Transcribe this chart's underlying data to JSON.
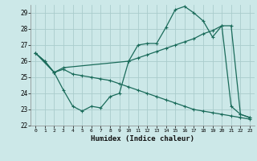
{
  "xlabel": "Humidex (Indice chaleur)",
  "bg_color": "#cce8e8",
  "grid_color": "#aacccc",
  "line_color": "#1a6b5a",
  "x_min": -0.5,
  "x_max": 23.5,
  "y_min": 22,
  "y_max": 29.5,
  "yticks": [
    22,
    23,
    24,
    25,
    26,
    27,
    28,
    29
  ],
  "xticks": [
    0,
    1,
    2,
    3,
    4,
    5,
    6,
    7,
    8,
    9,
    10,
    11,
    12,
    13,
    14,
    15,
    16,
    17,
    18,
    19,
    20,
    21,
    22,
    23
  ],
  "line1_x": [
    0,
    1,
    2,
    3,
    4,
    5,
    6,
    7,
    8,
    9,
    10,
    11,
    12,
    13,
    14,
    15,
    16,
    17,
    18,
    19,
    20,
    21,
    22,
    23
  ],
  "line1_y": [
    26.5,
    26.0,
    25.3,
    24.2,
    23.2,
    22.9,
    23.2,
    23.1,
    23.8,
    24.0,
    26.0,
    27.0,
    27.1,
    27.1,
    28.1,
    29.2,
    29.4,
    29.0,
    28.5,
    27.5,
    28.2,
    23.2,
    22.7,
    22.5
  ],
  "line2_x": [
    0,
    2,
    3,
    10,
    11,
    12,
    13,
    14,
    15,
    16,
    17,
    18,
    19,
    20,
    21,
    22,
    23
  ],
  "line2_y": [
    26.5,
    25.3,
    25.6,
    26.0,
    26.2,
    26.4,
    26.6,
    26.8,
    27.0,
    27.2,
    27.4,
    27.7,
    27.9,
    28.2,
    28.2,
    22.7,
    22.5
  ],
  "line3_x": [
    0,
    1,
    2,
    3,
    4,
    5,
    6,
    7,
    8,
    9,
    10,
    11,
    12,
    13,
    14,
    15,
    16,
    17,
    18,
    19,
    20,
    21,
    22,
    23
  ],
  "line3_y": [
    26.5,
    26.0,
    25.3,
    25.5,
    25.2,
    25.1,
    25.0,
    24.9,
    24.8,
    24.6,
    24.4,
    24.2,
    24.0,
    23.8,
    23.6,
    23.4,
    23.2,
    23.0,
    22.9,
    22.8,
    22.7,
    22.6,
    22.5,
    22.4
  ]
}
